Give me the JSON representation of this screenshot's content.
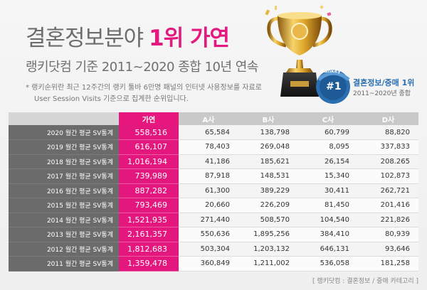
{
  "header": {
    "title": "결혼정보분야",
    "title_highlight": "1위 가연",
    "subtitle": "랭키닷컴 기준 2011~2020 종합 10년 연속",
    "note_line1": "* 랭키순위란 최근 12주간의 랭키 툴바 6만명 패널의 인터넷 사용정보를 자료로",
    "note_line2": "User Session Visits 기준으로 집계한 순위입니다."
  },
  "badge": {
    "ribbon_text": "Rankey",
    "number": "#1",
    "main": "결혼정보/중매 1위",
    "sub": "2011~2020년 종합"
  },
  "table": {
    "columns": [
      "가연",
      "A사",
      "B사",
      "C사",
      "D사"
    ],
    "rows": [
      {
        "label": "2020 월간 평균 SV통계",
        "values": [
          "558,516",
          "65,584",
          "138,798",
          "60,799",
          "88,820"
        ]
      },
      {
        "label": "2019 월간 평균 SV통계",
        "values": [
          "616,107",
          "78,403",
          "269,048",
          "8,095",
          "337,833"
        ]
      },
      {
        "label": "2018 월간 평균 SV통계",
        "values": [
          "1,016,194",
          "41,186",
          "185,621",
          "26,154",
          "208.265"
        ]
      },
      {
        "label": "2017 월간 평균 SV통계",
        "values": [
          "739,989",
          "87,918",
          "148,531",
          "15,340",
          "102,873"
        ]
      },
      {
        "label": "2016 월간 평균 SV통계",
        "values": [
          "887,282",
          "61,300",
          "389,229",
          "30,411",
          "262,721"
        ]
      },
      {
        "label": "2015 월간 평균 SV통계",
        "values": [
          "793,469",
          "20,660",
          "226,209",
          "81,450",
          "201,416"
        ]
      },
      {
        "label": "2014 월간 평균 SV통계",
        "values": [
          "1,521,935",
          "271,440",
          "508,570",
          "104,540",
          "221,826"
        ]
      },
      {
        "label": "2013 월간 평균 SV통계",
        "values": [
          "2,161,357",
          "550,636",
          "1,895,256",
          "384,410",
          "80,939"
        ]
      },
      {
        "label": "2012 월간 평균 SV통계",
        "values": [
          "1,812,683",
          "503,304",
          "1,203,132",
          "646,131",
          "93,646"
        ]
      },
      {
        "label": "2011 월간 평균 SV통계",
        "values": [
          "1,359,478",
          "360,849",
          "1,211,002",
          "536,058",
          "181,258"
        ]
      }
    ]
  },
  "source": "[ 랭키닷컴 : 결혼정보 / 중매 카테고리 ]",
  "colors": {
    "accent": "#e4197f",
    "row_label_bg": "#6b6b6b",
    "header_bg": "#c9c9c9",
    "badge_blue": "#2a6fb0"
  }
}
